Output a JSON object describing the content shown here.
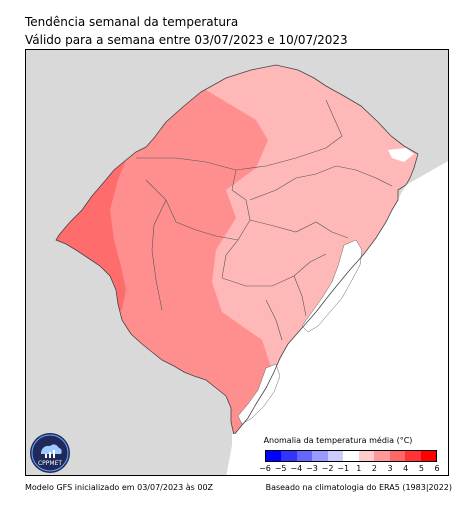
{
  "title": "Tendência semanal da temperatura",
  "subtitle": "Válido para a semana entre 03/07/2023 e 10/07/2023",
  "legend": {
    "title": "Anomalia da temperatura média (°C)",
    "ticks": [
      "−6",
      "−5",
      "−4",
      "−3",
      "−2",
      "−1",
      "1",
      "2",
      "3",
      "4",
      "5",
      "6"
    ],
    "colors": [
      "#0000ff",
      "#3333ff",
      "#6666ff",
      "#9999ff",
      "#ccccff",
      "#ffffff",
      "#ffcccc",
      "#ff9999",
      "#ff6666",
      "#ff3333",
      "#ff0000"
    ]
  },
  "map": {
    "region": "Rio Grande do Sul",
    "land_color": "#d9d9d9",
    "water_color": "#ffffff",
    "zones": [
      {
        "anomaly_range": "1 to 2",
        "color": "#ffb8b8"
      },
      {
        "anomaly_range": "2 to 3",
        "color": "#ff8f8f"
      },
      {
        "anomaly_range": "3 to 4",
        "color": "#ff6c6c"
      }
    ]
  },
  "logo": {
    "text": "CPPMET"
  },
  "footer": {
    "left": "Modelo GFS inicializado em 03/07/2023 às 00Z",
    "right": "Baseado na climatologia do ERA5 (1983|2022)"
  }
}
